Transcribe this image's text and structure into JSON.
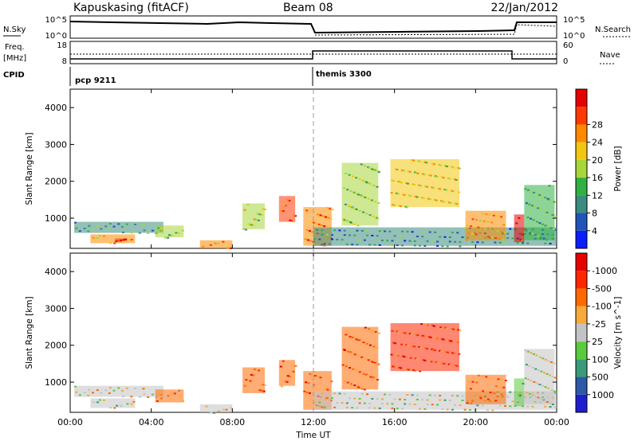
{
  "header": {
    "station": "Kapuskasing (fitACF)",
    "beam": "Beam 08",
    "date": "22/Jan/2012"
  },
  "top_panels": {
    "nsky_label": "N.Sky",
    "nsky_ticks": [
      "10^5",
      "10^0"
    ],
    "nsearch_label": "N.Search",
    "nsearch_ticks": [
      "10^5",
      "10^0"
    ],
    "freq_label_1": "Freq.",
    "freq_label_2": "[MHz]",
    "freq_ticks": [
      "18",
      "8"
    ],
    "nave_label": "Nave",
    "nave_ticks": [
      "60",
      "0"
    ],
    "cpid_label": "CPID",
    "cpid_segments": [
      {
        "name": "pcp 9211",
        "start": "00:00",
        "end": "12:00"
      },
      {
        "name": "themis 3300",
        "start": "12:00",
        "end": "24:00"
      }
    ]
  },
  "chart_data": [
    {
      "type": "heatmap",
      "name": "Power",
      "xlabel": "Time UT",
      "ylabel": "Slant Range [km]",
      "xlim": [
        "00:00",
        "24:00"
      ],
      "ylim": [
        180,
        4500
      ],
      "x_ticks": [
        "00:00",
        "04:00",
        "08:00",
        "12:00",
        "16:00",
        "20:00",
        "00:00"
      ],
      "y_ticks": [
        1000,
        2000,
        3000,
        4000
      ],
      "colorbar": {
        "label": "Power [dB]",
        "ticks": [
          "4",
          "8",
          "12",
          "16",
          "20",
          "24",
          "28"
        ],
        "colors": [
          "#0a1eff",
          "#2154b8",
          "#3a8c7e",
          "#31b043",
          "#a7d63a",
          "#f3c70f",
          "#ff8a00",
          "#ff3a00",
          "#e60000"
        ],
        "range": [
          0,
          30
        ]
      },
      "regions": [
        {
          "t0": 0.2,
          "t1": 4.6,
          "r0": 600,
          "r1": 900,
          "level": 0.3
        },
        {
          "t0": 1.0,
          "t1": 3.2,
          "r0": 320,
          "r1": 560,
          "level": 0.7
        },
        {
          "t0": 2.2,
          "t1": 2.8,
          "r0": 380,
          "r1": 450,
          "level": 0.9
        },
        {
          "t0": 4.2,
          "t1": 5.6,
          "r0": 480,
          "r1": 800,
          "level": 0.45
        },
        {
          "t0": 6.4,
          "t1": 8.0,
          "r0": 180,
          "r1": 400,
          "level": 0.75
        },
        {
          "t0": 8.5,
          "t1": 9.6,
          "r0": 700,
          "r1": 1400,
          "level": 0.5
        },
        {
          "t0": 10.3,
          "t1": 11.1,
          "r0": 900,
          "r1": 1600,
          "level": 0.85
        },
        {
          "t0": 11.5,
          "t1": 12.9,
          "r0": 250,
          "r1": 1300,
          "level": 0.8
        },
        {
          "t0": 12.0,
          "t1": 24.0,
          "r0": 250,
          "r1": 750,
          "level": 0.25
        },
        {
          "t0": 13.4,
          "t1": 15.2,
          "r0": 800,
          "r1": 2500,
          "level": 0.45
        },
        {
          "t0": 15.8,
          "t1": 19.2,
          "r0": 1300,
          "r1": 2600,
          "level": 0.6
        },
        {
          "t0": 19.5,
          "t1": 21.5,
          "r0": 400,
          "r1": 1200,
          "level": 0.7
        },
        {
          "t0": 21.9,
          "t1": 22.4,
          "r0": 350,
          "r1": 1100,
          "level": 0.95
        },
        {
          "t0": 22.4,
          "t1": 23.9,
          "r0": 400,
          "r1": 1900,
          "level": 0.35
        }
      ]
    },
    {
      "type": "heatmap",
      "name": "Velocity",
      "xlabel": "Time UT",
      "ylabel": "Slant Range [km]",
      "xlim": [
        "00:00",
        "24:00"
      ],
      "ylim": [
        180,
        4500
      ],
      "x_ticks": [
        "00:00",
        "04:00",
        "08:00",
        "12:00",
        "16:00",
        "20:00",
        "00:00"
      ],
      "y_ticks": [
        1000,
        2000,
        3000,
        4000
      ],
      "colorbar": {
        "label": "Velocity [m s^-1]",
        "ticks": [
          "1000",
          "500",
          "100",
          "25",
          "-25",
          "-100",
          "-500",
          "-1000"
        ],
        "colors": [
          "#1e1ecf",
          "#2b5aa8",
          "#3a9a7a",
          "#5acb3c",
          "#c3c3c3",
          "#f7a93a",
          "#ff6a00",
          "#ff2600",
          "#e60000"
        ],
        "range": [
          -1000,
          1000
        ]
      },
      "regions": [
        {
          "t0": 0.2,
          "t1": 4.6,
          "r0": 600,
          "r1": 900,
          "level": 0.55
        },
        {
          "t0": 1.0,
          "t1": 3.2,
          "r0": 300,
          "r1": 560,
          "level": 0.5
        },
        {
          "t0": 4.2,
          "t1": 5.6,
          "r0": 450,
          "r1": 800,
          "level": 0.7
        },
        {
          "t0": 6.4,
          "t1": 8.0,
          "r0": 180,
          "r1": 400,
          "level": 0.5
        },
        {
          "t0": 8.5,
          "t1": 9.6,
          "r0": 700,
          "r1": 1400,
          "level": 0.75
        },
        {
          "t0": 10.3,
          "t1": 11.1,
          "r0": 900,
          "r1": 1600,
          "level": 0.8
        },
        {
          "t0": 11.5,
          "t1": 12.9,
          "r0": 250,
          "r1": 1300,
          "level": 0.75
        },
        {
          "t0": 12.0,
          "t1": 24.0,
          "r0": 250,
          "r1": 750,
          "level": 0.5
        },
        {
          "t0": 13.4,
          "t1": 15.2,
          "r0": 800,
          "r1": 2500,
          "level": 0.78
        },
        {
          "t0": 15.8,
          "t1": 19.2,
          "r0": 1300,
          "r1": 2600,
          "level": 0.82
        },
        {
          "t0": 19.5,
          "t1": 21.5,
          "r0": 400,
          "r1": 1200,
          "level": 0.72
        },
        {
          "t0": 21.9,
          "t1": 22.4,
          "r0": 350,
          "r1": 1100,
          "level": 0.35
        },
        {
          "t0": 22.4,
          "t1": 23.9,
          "r0": 400,
          "r1": 1900,
          "level": 0.5
        }
      ]
    }
  ]
}
